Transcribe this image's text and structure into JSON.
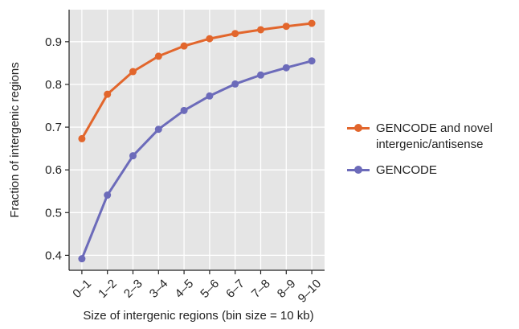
{
  "chart_data": {
    "type": "line",
    "xlabel": "Size of intergenic regions (bin size = 10 kb)",
    "ylabel": "Fraction of intergenic regions",
    "categories": [
      "0–1",
      "1–2",
      "2–3",
      "3–4",
      "4–5",
      "5–6",
      "6–7",
      "7–8",
      "8–9",
      "9–10"
    ],
    "ylim": [
      0.365,
      0.975
    ],
    "yticks": [
      0.4,
      0.5,
      0.6,
      0.7,
      0.8,
      0.9
    ],
    "ytick_labels": [
      "0.4",
      "0.5",
      "0.6",
      "0.7",
      "0.8",
      "0.9"
    ],
    "grid": true,
    "legend_position": "right",
    "series": [
      {
        "name": "GENCODE and novel intergenic/antisense",
        "color": "#E2662C",
        "values": [
          0.673,
          0.777,
          0.83,
          0.866,
          0.89,
          0.907,
          0.919,
          0.928,
          0.936,
          0.943
        ]
      },
      {
        "name": "GENCODE",
        "color": "#6C6BBA",
        "values": [
          0.392,
          0.541,
          0.633,
          0.695,
          0.739,
          0.773,
          0.801,
          0.822,
          0.839,
          0.855
        ]
      }
    ]
  }
}
